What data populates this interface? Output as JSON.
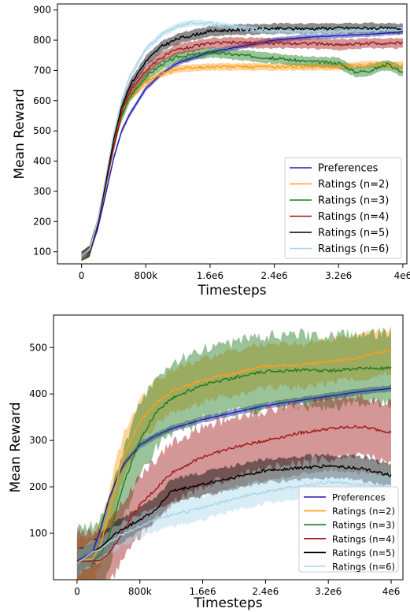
{
  "chart_data": [
    {
      "type": "line",
      "xlabel": "Timesteps",
      "ylabel": "Mean Reward",
      "xlim": [
        -300000,
        4050000
      ],
      "ylim": [
        60,
        920
      ],
      "x_ticks": [
        0,
        800000,
        1600000,
        2400000,
        3200000,
        4000000
      ],
      "x_tick_labels": [
        "0",
        "800k",
        "1.6e6",
        "2.4e6",
        "3.2e6",
        "4e6"
      ],
      "y_ticks": [
        100,
        200,
        300,
        400,
        500,
        600,
        700,
        800,
        900
      ],
      "y_tick_labels": [
        "100",
        "200",
        "300",
        "400",
        "500",
        "600",
        "700",
        "800",
        "900"
      ],
      "legend_placement": "lower-right",
      "grid": false,
      "series": [
        {
          "name": "Preferences",
          "color": "#1f1fa8",
          "band": 10,
          "x": [
            0,
            100000,
            200000,
            300000,
            400000,
            500000,
            600000,
            800000,
            1000000,
            1200000,
            1600000,
            2000000,
            2400000,
            2800000,
            3200000,
            3600000,
            4000000
          ],
          "y": [
            85,
            100,
            175,
            290,
            410,
            500,
            555,
            640,
            690,
            725,
            760,
            780,
            800,
            810,
            815,
            820,
            828
          ]
        },
        {
          "name": "Ratings (n=2)",
          "color": "#ff9f1c",
          "band": 14,
          "x": [
            0,
            100000,
            200000,
            300000,
            400000,
            500000,
            600000,
            800000,
            1000000,
            1200000,
            1600000,
            2000000,
            2400000,
            2800000,
            3200000,
            3600000,
            4000000
          ],
          "y": [
            85,
            105,
            200,
            330,
            460,
            560,
            610,
            660,
            690,
            705,
            712,
            712,
            712,
            712,
            712,
            720,
            718
          ]
        },
        {
          "name": "Ratings (n=3)",
          "color": "#1e7a1e",
          "band": 20,
          "x": [
            0,
            100000,
            200000,
            300000,
            400000,
            500000,
            600000,
            800000,
            1000000,
            1200000,
            1600000,
            2000000,
            2400000,
            2800000,
            3200000,
            3400000,
            3600000,
            3800000,
            4000000
          ],
          "y": [
            85,
            102,
            190,
            320,
            450,
            550,
            610,
            680,
            720,
            745,
            760,
            750,
            740,
            730,
            725,
            695,
            700,
            720,
            695
          ]
        },
        {
          "name": "Ratings (n=4)",
          "color": "#a01818",
          "band": 20,
          "x": [
            0,
            100000,
            200000,
            300000,
            400000,
            500000,
            600000,
            800000,
            1000000,
            1200000,
            1600000,
            2000000,
            2400000,
            2800000,
            3200000,
            3600000,
            4000000
          ],
          "y": [
            85,
            102,
            190,
            320,
            450,
            560,
            630,
            700,
            745,
            770,
            790,
            792,
            790,
            790,
            785,
            790,
            790
          ]
        },
        {
          "name": "Ratings (n=5)",
          "color": "#000000",
          "band": 20,
          "x": [
            0,
            100000,
            200000,
            300000,
            400000,
            500000,
            600000,
            800000,
            1000000,
            1200000,
            1600000,
            2000000,
            2400000,
            2800000,
            3200000,
            3600000,
            4000000
          ],
          "y": [
            85,
            102,
            195,
            330,
            470,
            580,
            650,
            730,
            780,
            805,
            830,
            835,
            838,
            838,
            840,
            840,
            838
          ]
        },
        {
          "name": "Ratings (n=6)",
          "color": "#a9d6e8",
          "band": 12,
          "x": [
            0,
            100000,
            200000,
            300000,
            400000,
            500000,
            600000,
            800000,
            1000000,
            1200000,
            1400000,
            1600000,
            2000000,
            2400000,
            2800000,
            3200000,
            3600000,
            4000000
          ],
          "y": [
            85,
            105,
            200,
            345,
            490,
            600,
            680,
            770,
            820,
            848,
            858,
            855,
            840,
            830,
            828,
            830,
            833,
            835
          ]
        }
      ]
    },
    {
      "type": "line",
      "xlabel": "Timesteps",
      "ylabel": "Mean Reward",
      "xlim": [
        -300000,
        4150000
      ],
      "ylim": [
        0,
        570
      ],
      "x_ticks": [
        0,
        800000,
        1600000,
        2400000,
        3200000,
        4000000
      ],
      "x_tick_labels": [
        "0",
        "800k",
        "1.6e6",
        "2.4e6",
        "3.2e6",
        "4e6"
      ],
      "y_ticks": [
        100,
        200,
        300,
        400,
        500
      ],
      "y_tick_labels": [
        "100",
        "200",
        "300",
        "400",
        "500"
      ],
      "legend_placement": "lower-right",
      "grid": false,
      "series": [
        {
          "name": "Preferences",
          "color": "#1f1fa8",
          "band": 8,
          "x": [
            0,
            200000,
            300000,
            400000,
            500000,
            600000,
            800000,
            1000000,
            1200000,
            1600000,
            2000000,
            2400000,
            2800000,
            3200000,
            3600000,
            4000000
          ],
          "y": [
            40,
            60,
            110,
            170,
            215,
            250,
            290,
            310,
            325,
            345,
            360,
            375,
            385,
            395,
            405,
            412
          ]
        },
        {
          "name": "Ratings (n=2)",
          "color": "#ff9f1c",
          "band": 55,
          "x": [
            0,
            200000,
            300000,
            400000,
            500000,
            600000,
            800000,
            1000000,
            1200000,
            1600000,
            2000000,
            2400000,
            2800000,
            3200000,
            3600000,
            3800000,
            4000000
          ],
          "y": [
            40,
            45,
            75,
            140,
            210,
            270,
            340,
            380,
            405,
            430,
            445,
            460,
            462,
            470,
            478,
            490,
            492
          ]
        },
        {
          "name": "Ratings (n=3)",
          "color": "#1e7a1e",
          "band": 90,
          "x": [
            0,
            200000,
            300000,
            400000,
            500000,
            600000,
            800000,
            1000000,
            1200000,
            1600000,
            2000000,
            2400000,
            2800000,
            3200000,
            3600000,
            4000000
          ],
          "y": [
            40,
            40,
            55,
            90,
            150,
            210,
            300,
            360,
            390,
            420,
            435,
            448,
            452,
            450,
            455,
            455
          ]
        },
        {
          "name": "Ratings (n=4)",
          "color": "#a01818",
          "band": 75,
          "x": [
            0,
            200000,
            300000,
            400000,
            500000,
            600000,
            800000,
            1000000,
            1200000,
            1600000,
            2000000,
            2400000,
            2800000,
            3200000,
            3600000,
            4000000
          ],
          "y": [
            40,
            40,
            42,
            55,
            80,
            110,
            160,
            195,
            230,
            265,
            285,
            300,
            315,
            325,
            330,
            318
          ]
        },
        {
          "name": "Ratings (n=5)",
          "color": "#000000",
          "band": 30,
          "x": [
            0,
            200000,
            300000,
            400000,
            500000,
            600000,
            800000,
            1000000,
            1200000,
            1600000,
            2000000,
            2400000,
            2800000,
            3200000,
            3600000,
            4000000
          ],
          "y": [
            35,
            60,
            70,
            85,
            100,
            110,
            130,
            150,
            190,
            205,
            220,
            235,
            240,
            245,
            240,
            225
          ]
        },
        {
          "name": "Ratings (n=6)",
          "color": "#a9d6e8",
          "band": 30,
          "x": [
            0,
            200000,
            300000,
            400000,
            500000,
            600000,
            800000,
            1000000,
            1200000,
            1600000,
            2000000,
            2400000,
            2800000,
            3200000,
            3600000,
            4000000
          ],
          "y": [
            35,
            60,
            65,
            80,
            90,
            100,
            115,
            130,
            140,
            155,
            175,
            190,
            200,
            210,
            205,
            200
          ]
        }
      ]
    }
  ]
}
